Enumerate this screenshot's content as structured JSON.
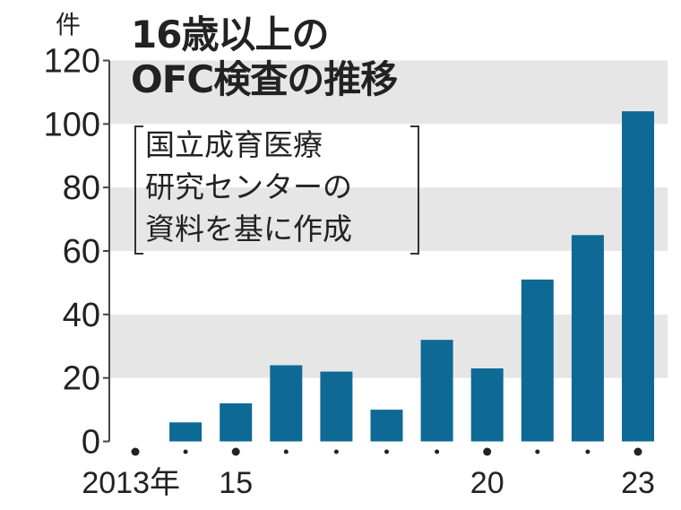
{
  "chart_data": {
    "type": "bar",
    "title": "16歳以上のOFC検査の推移",
    "title_lines": [
      "16歳以上の",
      "OFC検査の推移"
    ],
    "source_note_lines": [
      "国立成育医療",
      "研究センターの",
      "資料を基に作成"
    ],
    "ylabel": "件",
    "xlabel": "",
    "categories": [
      "2013",
      "2014",
      "2015",
      "2016",
      "2017",
      "2018",
      "2019",
      "2020",
      "2021",
      "2022",
      "2023"
    ],
    "x_tick_labels": [
      {
        "index": 0,
        "label": "2013年"
      },
      {
        "index": 2,
        "label": "15"
      },
      {
        "index": 7,
        "label": "20"
      },
      {
        "index": 10,
        "label": "23"
      }
    ],
    "values": [
      0,
      6,
      12,
      24,
      22,
      10,
      32,
      23,
      51,
      65,
      104
    ],
    "ylim": [
      0,
      120
    ],
    "y_ticks": [
      0,
      20,
      40,
      60,
      80,
      100,
      120
    ],
    "grid": "alternating bands",
    "bar_color": "#0e6a94",
    "band_color": "#e6e6e6"
  }
}
